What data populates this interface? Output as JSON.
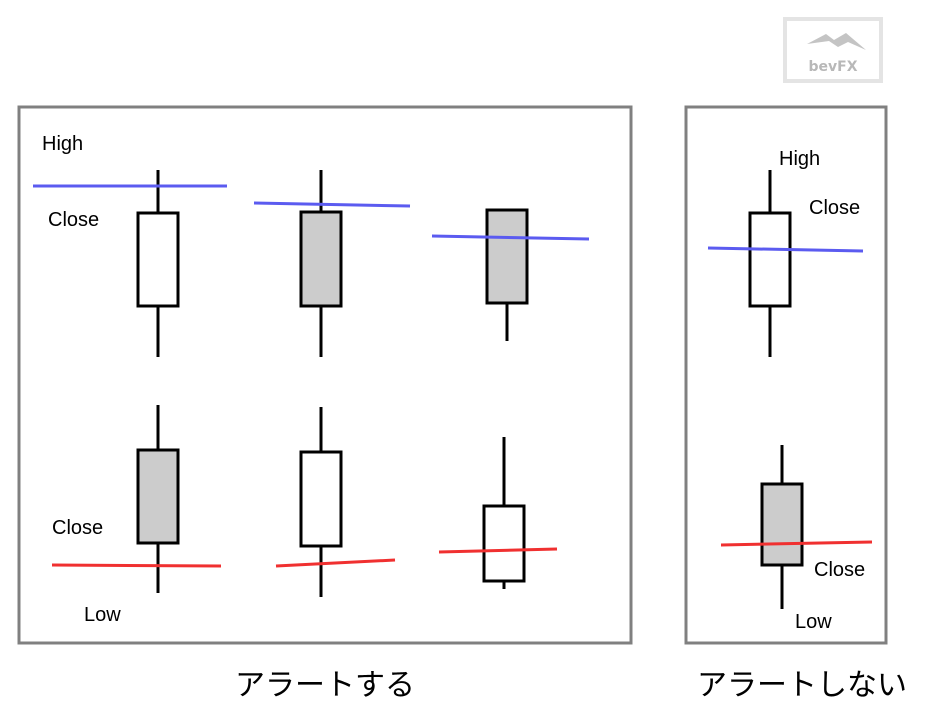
{
  "logo": {
    "text": "bevFX"
  },
  "panel_alert": {
    "caption": "アラートする",
    "labels": {
      "high": "High",
      "close_top": "Close",
      "close_bottom": "Close",
      "low": "Low"
    }
  },
  "panel_no_alert": {
    "caption": "アラートしない",
    "labels": {
      "high": "High",
      "close_top": "Close",
      "close_bottom": "Close",
      "low": "Low"
    }
  },
  "colors": {
    "frame": "#808080",
    "wick": "#000000",
    "bull_body": "#ffffff",
    "bear_body": "#cccccc",
    "upper_line": "#5b5bf0",
    "lower_line": "#f03030"
  }
}
